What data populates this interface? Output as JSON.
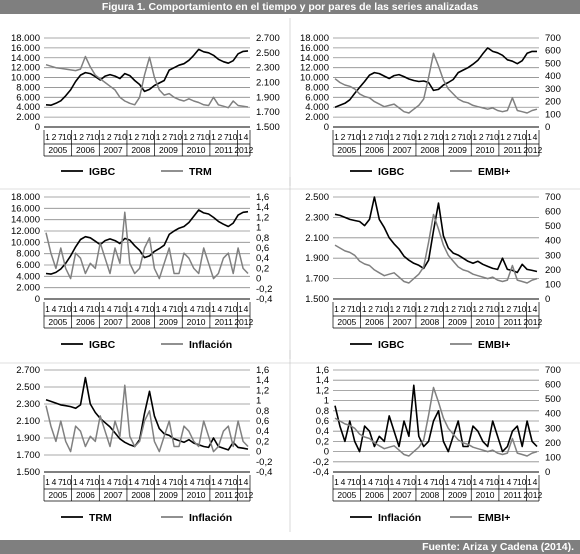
{
  "figure_title": "Figura 1. Comportamiento en el tiempo y por pares de las series analizadas",
  "source": "Fuente: Ariza y Cadena (2014).",
  "colors": {
    "black_series": "#000000",
    "gray_series": "#808080",
    "header": "#7f7f7f",
    "grid": "#7f7f7f"
  },
  "chart_data": [
    {
      "type": "line",
      "panel": "top-left",
      "years": [
        "2005",
        "2006",
        "2007",
        "2008",
        "2009",
        "2010",
        "2011",
        "2012"
      ],
      "month_ticks": [
        "1",
        "2",
        "7",
        "10"
      ],
      "last_ticks": [
        "1",
        "4"
      ],
      "left_axis": {
        "ticks": [
          "0",
          "2.000",
          "4.000",
          "6.000",
          "8.000",
          "10.000",
          "12.000",
          "14.000",
          "16.000",
          "18.000"
        ],
        "ylim": [
          0,
          18000
        ]
      },
      "right_axis": {
        "ticks": [
          "1.500",
          "1.700",
          "1.900",
          "2.100",
          "2.300",
          "2.500",
          "2.700"
        ],
        "ylim": [
          1500,
          2700
        ]
      },
      "legend_placement": "bottom",
      "series": [
        {
          "name": "IGBC",
          "axis": "left",
          "color": "#000000",
          "values": [
            4500,
            4400,
            4800,
            5300,
            6300,
            7500,
            9200,
            10500,
            11000,
            10800,
            10200,
            9500,
            10300,
            10600,
            10300,
            9800,
            10800,
            10400,
            9400,
            8600,
            7200,
            7600,
            8400,
            8900,
            9400,
            11500,
            12000,
            12500,
            12800,
            13500,
            14500,
            15700,
            15200,
            15000,
            14500,
            13700,
            13200,
            12900,
            13400,
            14800,
            15300,
            15400
          ]
        },
        {
          "name": "TRM",
          "axis": "right",
          "color": "#808080",
          "values": [
            2340,
            2320,
            2300,
            2290,
            2280,
            2270,
            2260,
            2280,
            2450,
            2310,
            2200,
            2150,
            2100,
            2050,
            2000,
            1900,
            1850,
            1820,
            1800,
            1900,
            2200,
            2440,
            2170,
            2000,
            1930,
            1950,
            1900,
            1870,
            1850,
            1880,
            1850,
            1830,
            1800,
            1790,
            1900,
            1800,
            1780,
            1760,
            1850,
            1790,
            1780,
            1770
          ]
        }
      ]
    },
    {
      "type": "line",
      "panel": "top-right",
      "years": [
        "2005",
        "2006",
        "2007",
        "2008",
        "2009",
        "2010",
        "2011",
        "2012"
      ],
      "month_ticks": [
        "1",
        "2",
        "7",
        "10"
      ],
      "last_ticks": [
        "1",
        "4"
      ],
      "left_axis": {
        "ticks": [
          "0",
          "2.000",
          "4.000",
          "6.000",
          "8.000",
          "10.000",
          "12.000",
          "14.000",
          "16.000",
          "18.000"
        ],
        "ylim": [
          0,
          18000
        ]
      },
      "right_axis": {
        "ticks": [
          "0",
          "100",
          "200",
          "300",
          "400",
          "500",
          "600",
          "700"
        ],
        "ylim": [
          0,
          700
        ]
      },
      "legend_placement": "bottom",
      "series": [
        {
          "name": "IGBC",
          "axis": "left",
          "color": "#000000",
          "values": [
            4000,
            4400,
            4800,
            5500,
            6800,
            8000,
            9200,
            10500,
            11000,
            10800,
            10300,
            9800,
            10400,
            10600,
            10200,
            9700,
            9400,
            9200,
            9300,
            9000,
            7400,
            7600,
            8500,
            9000,
            9600,
            11000,
            11500,
            12000,
            12700,
            13500,
            14800,
            16000,
            15300,
            15000,
            14500,
            13600,
            13300,
            12800,
            13400,
            14900,
            15300,
            15300
          ]
        },
        {
          "name": "EMBI+",
          "axis": "right",
          "color": "#808080",
          "values": [
            380,
            350,
            330,
            320,
            300,
            260,
            240,
            230,
            200,
            180,
            160,
            170,
            180,
            150,
            120,
            110,
            140,
            170,
            220,
            390,
            580,
            480,
            370,
            300,
            260,
            220,
            200,
            190,
            170,
            160,
            150,
            140,
            150,
            130,
            120,
            130,
            230,
            130,
            120,
            110,
            130,
            140
          ]
        }
      ]
    },
    {
      "type": "line",
      "panel": "middle-left",
      "years": [
        "2005",
        "2006",
        "2007",
        "2008",
        "2009",
        "2010",
        "2011",
        "2012"
      ],
      "month_ticks": [
        "1",
        "4",
        "7",
        "10"
      ],
      "last_ticks": [
        "1",
        "4"
      ],
      "left_axis": {
        "ticks": [
          "0",
          "2.000",
          "4.000",
          "6.000",
          "8.000",
          "10.000",
          "12.000",
          "14.000",
          "16.000",
          "18.000"
        ],
        "ylim": [
          0,
          18000
        ]
      },
      "right_axis": {
        "ticks": [
          "-0,4",
          "-0,2",
          "0",
          "0,2",
          "0,4",
          "0,6",
          "0,8",
          "1",
          "1,2",
          "1,4",
          "1,6"
        ],
        "ylim": [
          -0.4,
          1.6
        ]
      },
      "legend_placement": "bottom",
      "series": [
        {
          "name": "IGBC",
          "axis": "left",
          "color": "#000000",
          "values": [
            4500,
            4400,
            4700,
            5300,
            6300,
            7600,
            9200,
            10500,
            11000,
            10800,
            10200,
            9600,
            10300,
            10600,
            10300,
            9800,
            10700,
            10400,
            9400,
            8600,
            7300,
            7600,
            8400,
            8900,
            9500,
            11400,
            12000,
            12500,
            12800,
            13500,
            14600,
            15700,
            15200,
            15000,
            14400,
            13700,
            13200,
            12800,
            13400,
            14800,
            15300,
            15400
          ]
        },
        {
          "name": "Inflación",
          "axis": "right",
          "color": "#808080",
          "values": [
            0.9,
            0.5,
            0.2,
            0.6,
            0.2,
            0.0,
            0.5,
            0.4,
            0.1,
            0.3,
            0.2,
            0.7,
            0.4,
            0.1,
            0.6,
            0.3,
            1.3,
            0.3,
            0.1,
            0.2,
            0.6,
            0.8,
            0.2,
            0.0,
            0.3,
            0.6,
            0.1,
            0.1,
            0.5,
            0.4,
            0.2,
            0.1,
            0.6,
            0.3,
            0.0,
            0.1,
            0.4,
            0.5,
            0.1,
            0.6,
            0.2,
            0.1
          ]
        }
      ]
    },
    {
      "type": "line",
      "panel": "middle-right",
      "years": [
        "2005",
        "2006",
        "2007",
        "2008",
        "2009",
        "2010",
        "2011",
        "2012"
      ],
      "month_ticks": [
        "1",
        "2",
        "7",
        "10"
      ],
      "last_ticks": [
        "1",
        "4"
      ],
      "left_axis": {
        "ticks": [
          "1.500",
          "1.700",
          "1.900",
          "2.100",
          "2.300",
          "2.500"
        ],
        "ylim": [
          1500,
          2500
        ]
      },
      "right_axis": {
        "ticks": [
          "0",
          "100",
          "200",
          "300",
          "400",
          "500",
          "600",
          "700"
        ],
        "ylim": [
          0,
          700
        ]
      },
      "legend_placement": "bottom",
      "series": [
        {
          "name": "IGBC",
          "axis": "left",
          "color": "#000000",
          "values": [
            2330,
            2320,
            2300,
            2280,
            2270,
            2260,
            2220,
            2280,
            2540,
            2280,
            2200,
            2100,
            2040,
            1990,
            1920,
            1880,
            1850,
            1830,
            1800,
            1880,
            2170,
            2440,
            2120,
            2000,
            1950,
            1930,
            1900,
            1870,
            1850,
            1870,
            1840,
            1820,
            1800,
            1790,
            1900,
            1790,
            1780,
            1760,
            1840,
            1790,
            1780,
            1770
          ]
        },
        {
          "name": "EMBI+",
          "axis": "right",
          "color": "#808080",
          "values": [
            370,
            350,
            330,
            320,
            300,
            260,
            240,
            230,
            200,
            180,
            160,
            170,
            180,
            150,
            120,
            110,
            140,
            170,
            220,
            390,
            580,
            480,
            370,
            300,
            260,
            220,
            200,
            190,
            170,
            160,
            150,
            140,
            150,
            130,
            120,
            130,
            230,
            130,
            120,
            110,
            130,
            140
          ]
        }
      ]
    },
    {
      "type": "line",
      "panel": "bottom-left",
      "years": [
        "2005",
        "2006",
        "2007",
        "2008",
        "2009",
        "2010",
        "2011",
        "2012"
      ],
      "month_ticks": [
        "1",
        "4",
        "7",
        "10"
      ],
      "last_ticks": [
        "1",
        "4"
      ],
      "left_axis": {
        "ticks": [
          "1.500",
          "1.700",
          "1.900",
          "2.100",
          "2.300",
          "2.500",
          "2.700"
        ],
        "ylim": [
          1500,
          2700
        ]
      },
      "right_axis": {
        "ticks": [
          "-0,4",
          "-0,2",
          "0",
          "0,2",
          "0,4",
          "0,6",
          "0,8",
          "1",
          "1,2",
          "1,4",
          "1,6"
        ],
        "ylim": [
          -0.4,
          1.6
        ]
      },
      "legend_placement": "bottom",
      "series": [
        {
          "name": "TRM",
          "axis": "left",
          "color": "#000000",
          "values": [
            2350,
            2330,
            2310,
            2290,
            2280,
            2270,
            2250,
            2290,
            2610,
            2300,
            2200,
            2130,
            2080,
            2030,
            1960,
            1890,
            1850,
            1820,
            1800,
            1880,
            2190,
            2450,
            2160,
            2010,
            1950,
            1930,
            1890,
            1870,
            1850,
            1880,
            1840,
            1820,
            1800,
            1790,
            1900,
            1800,
            1780,
            1760,
            1850,
            1790,
            1780,
            1770
          ]
        },
        {
          "name": "Inflación",
          "axis": "right",
          "color": "#808080",
          "values": [
            0.9,
            0.5,
            0.2,
            0.6,
            0.2,
            0.0,
            0.5,
            0.4,
            0.1,
            0.3,
            0.2,
            0.7,
            0.4,
            0.1,
            0.6,
            0.3,
            1.3,
            0.3,
            0.1,
            0.2,
            0.6,
            0.8,
            0.2,
            0.0,
            0.3,
            0.6,
            0.1,
            0.1,
            0.5,
            0.4,
            0.2,
            0.1,
            0.6,
            0.3,
            0.0,
            0.1,
            0.4,
            0.5,
            0.1,
            0.6,
            0.2,
            0.1
          ]
        }
      ]
    },
    {
      "type": "line",
      "panel": "bottom-right",
      "years": [
        "2005",
        "2006",
        "2007",
        "2008",
        "2009",
        "2010",
        "2011",
        "2012"
      ],
      "month_ticks": [
        "1",
        "4",
        "7",
        "10"
      ],
      "last_ticks": [
        "1",
        "4"
      ],
      "left_axis": {
        "ticks": [
          "-0,4",
          "-0,2",
          "0",
          "0,2",
          "0,4",
          "0,6",
          "0,8",
          "1",
          "1,2",
          "1,4",
          "1,6"
        ],
        "ylim": [
          -0.4,
          1.6
        ]
      },
      "right_axis": {
        "ticks": [
          "0",
          "100",
          "200",
          "300",
          "400",
          "500",
          "600",
          "700"
        ],
        "ylim": [
          0,
          700
        ]
      },
      "legend_placement": "bottom",
      "series": [
        {
          "name": "Inflación",
          "axis": "left",
          "color": "#000000",
          "values": [
            0.9,
            0.5,
            0.2,
            0.6,
            0.2,
            0.0,
            0.5,
            0.4,
            0.1,
            0.3,
            0.2,
            0.7,
            0.4,
            0.1,
            0.6,
            0.3,
            1.3,
            0.3,
            0.1,
            0.2,
            0.6,
            0.8,
            0.2,
            0.0,
            0.3,
            0.6,
            0.1,
            0.1,
            0.5,
            0.4,
            0.2,
            0.1,
            0.6,
            0.3,
            0.0,
            0.1,
            0.4,
            0.5,
            0.1,
            0.6,
            0.2,
            0.1
          ]
        },
        {
          "name": "EMBI+",
          "axis": "right",
          "color": "#808080",
          "values": [
            370,
            350,
            330,
            320,
            300,
            260,
            240,
            230,
            200,
            180,
            160,
            170,
            180,
            150,
            120,
            110,
            140,
            170,
            220,
            390,
            580,
            480,
            370,
            300,
            260,
            220,
            200,
            190,
            170,
            160,
            150,
            140,
            150,
            130,
            120,
            130,
            230,
            130,
            120,
            110,
            130,
            140
          ]
        }
      ]
    }
  ]
}
